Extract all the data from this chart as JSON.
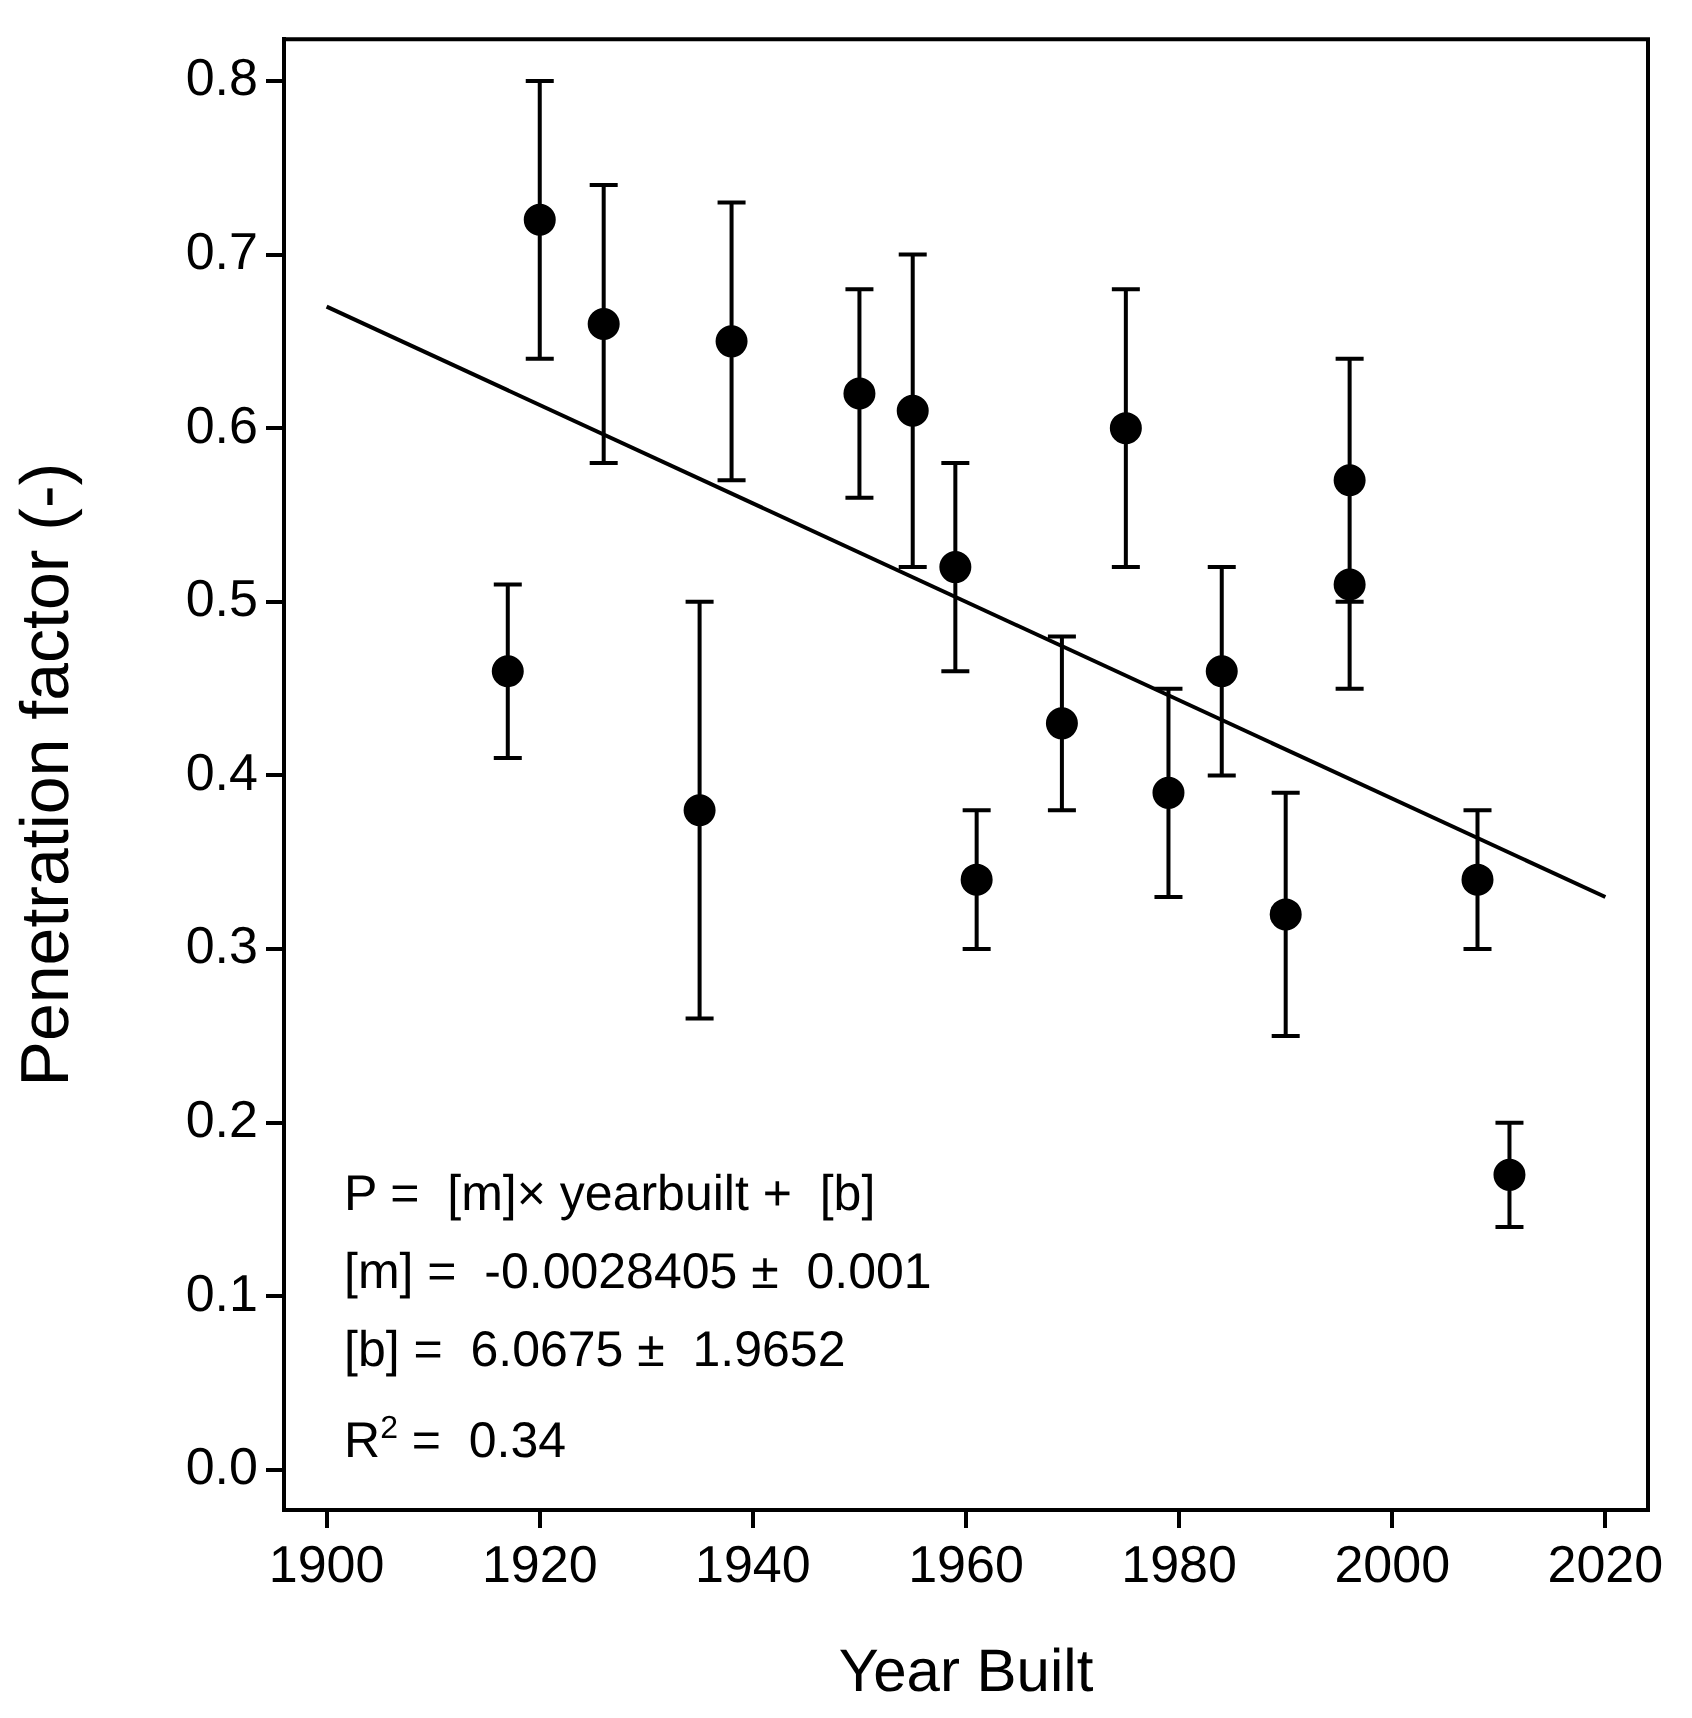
{
  "chart_data": {
    "type": "scatter",
    "xlabel": "Year Built",
    "ylabel": "Penetration factor (-)",
    "xlim": [
      1896,
      2024
    ],
    "ylim": [
      -0.023,
      0.824
    ],
    "xticks": [
      1900,
      1920,
      1940,
      1960,
      1980,
      2000,
      2020
    ],
    "yticks": [
      {
        "value": 0,
        "label": "0.0"
      },
      0.1,
      0.2,
      0.3,
      0.4,
      0.5,
      0.6,
      0.7,
      0.8
    ],
    "grid": false,
    "legend": false,
    "marker": "circle",
    "series": [
      {
        "color": "#000000",
        "x": [
          1917,
          1920,
          1926,
          1935,
          1938,
          1950,
          1955,
          1959,
          1961,
          1969,
          1975,
          1979,
          1984,
          1990,
          1996,
          1996,
          2008,
          2011
        ],
        "values": [
          0.46,
          0.72,
          0.66,
          0.38,
          0.65,
          0.62,
          0.61,
          0.52,
          0.34,
          0.43,
          0.6,
          0.39,
          0.46,
          0.32,
          0.57,
          0.51,
          0.34,
          0.17
        ],
        "errors": [
          [
            0.41,
            0.51
          ],
          [
            0.64,
            0.8
          ],
          [
            0.58,
            0.74
          ],
          [
            0.26,
            0.5
          ],
          [
            0.57,
            0.73
          ],
          [
            0.56,
            0.68
          ],
          [
            0.52,
            0.7
          ],
          [
            0.46,
            0.58
          ],
          [
            0.3,
            0.38
          ],
          [
            0.38,
            0.48
          ],
          [
            0.52,
            0.68
          ],
          [
            0.33,
            0.45
          ],
          [
            0.4,
            0.52
          ],
          [
            0.25,
            0.39
          ],
          [
            0.5,
            0.64
          ],
          [
            0.45,
            0.51
          ],
          [
            0.3,
            0.38
          ],
          [
            0.14,
            0.2
          ]
        ]
      },
      {
        "type": "line",
        "color": "#000000",
        "marker": "none",
        "line_style": "solid",
        "x": [
          1900,
          2020
        ],
        "values": [
          0.67,
          0.33
        ]
      }
    ],
    "annotations": [
      "P =  [m]× yearbuilt +  [b]",
      "[m] =  -0.0028405 ±  0.001",
      "[b] =  6.0675 ±  1.9652",
      "R$^{2}$ =  0.34"
    ]
  }
}
